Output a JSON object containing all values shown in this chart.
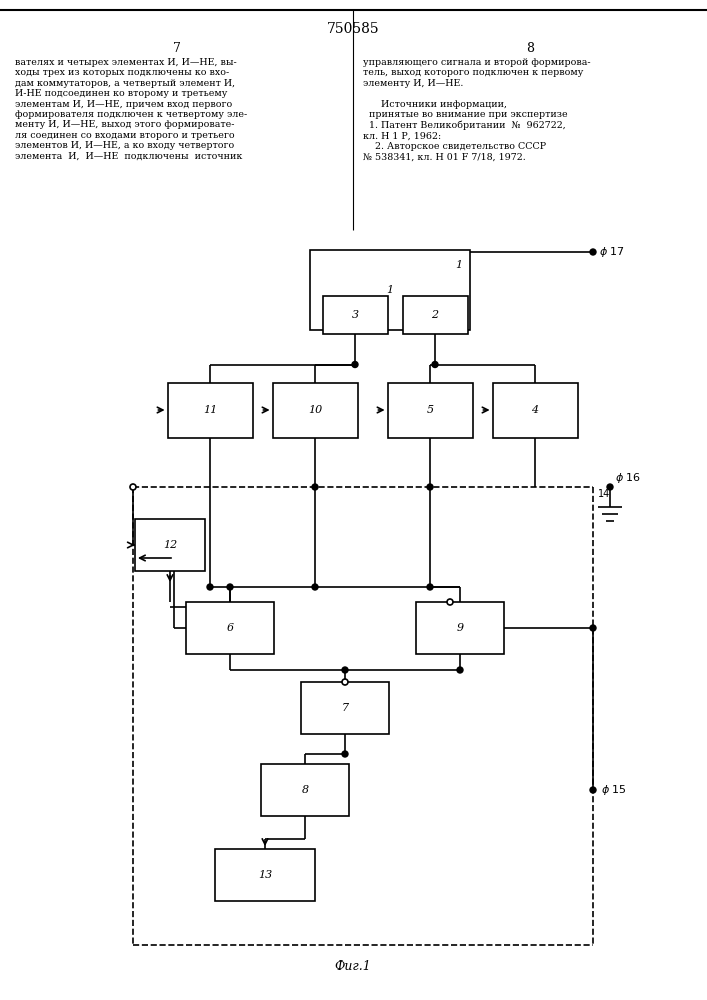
{
  "title": "750585",
  "fig_caption": "Фиг.1",
  "page_left_num": "7",
  "page_right_num": "8",
  "background_color": "#ffffff",
  "line_color": "#000000",
  "text_left_col": "вателях и четырех элементах И, И—НЕ, вы-\nходы трех из которых подключены ко вхо-\nдам коммутаторов, а четвертый элемент И,\nИ-НЕ подсоединен ко второму и третьему\nэлементам И, И—НЕ, причем вход первого\nформирователя подключен к четвертому эле-\nменту И, И—НЕ, выход этого формировате-\nля соединен со входами второго и третьего\nэлементов И, И—НЕ, а ко входу четвертого\nэлемента  И,  И—НЕ  подключены  источник",
  "text_right_col": "управляющего сигнала и второй формирова-\nтель, выход которого подключен к первому\nэлементу И, И—НЕ.\n\n      Источники информации,\n  принятые во внимание при экспертизе\n  1. Патент Великобритании  №  962722,\nкл. Н 1 Р, 1962:\n    2. Авторское свидетельство СССР\n№ 538341, кл. Н 01 F 7/18, 1972."
}
